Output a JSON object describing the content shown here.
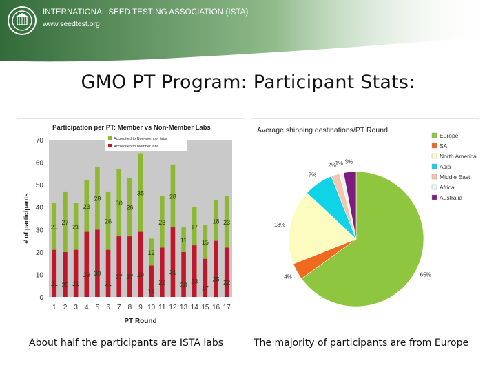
{
  "header": {
    "org_name": "INTERNATIONAL SEED TESTING ASSOCIATION (ISTA)",
    "url": "www.seedtest.org",
    "colors": {
      "band_dark": "#336b3a",
      "band_light": "#8fba8a"
    }
  },
  "slide_title": "GMO PT Program: Participant Stats:",
  "captions": {
    "left": "About half the participants are ISTA labs",
    "right": "The majority of participants are from Europe"
  },
  "chart_data": [
    {
      "type": "bar",
      "stacked": true,
      "title": "Participation per PT: Member vs Non-Member Labs",
      "xlabel": "PT Round",
      "ylabel": "# of participants",
      "ylim": [
        0,
        70
      ],
      "yticks": [
        0,
        10,
        20,
        30,
        40,
        50,
        60,
        70
      ],
      "grid": false,
      "legend": "top-center",
      "categories": [
        "1",
        "2",
        "3",
        "4",
        "5",
        "6",
        "7",
        "8",
        "9",
        "10",
        "11",
        "12",
        "13",
        "14",
        "15",
        "16",
        "17"
      ],
      "series": [
        {
          "name": "Accredited to Non-member labs",
          "color": "#8db832",
          "values": [
            21,
            27,
            21,
            23,
            28,
            26,
            30,
            26,
            35,
            12,
            23,
            28,
            11,
            17,
            15,
            18,
            23
          ]
        },
        {
          "name": "Accredited to Member labs",
          "color": "#c0172c",
          "values": [
            21,
            20,
            21,
            29,
            30,
            21,
            27,
            27,
            29,
            14,
            22,
            31,
            20,
            23,
            17,
            25,
            22
          ]
        }
      ],
      "colors": {
        "plot_bg": "#c9c9c9",
        "axis_text": "#333333"
      }
    },
    {
      "type": "pie",
      "title": "Average shipping destinations/PT Round",
      "legend": "right",
      "slices": [
        {
          "label": "Europe",
          "value": 65,
          "pct_label": "65%",
          "color": "#8ec63f"
        },
        {
          "label": "SA",
          "value": 4,
          "pct_label": "4%",
          "color": "#f06a1d"
        },
        {
          "label": "North America",
          "value": 18,
          "pct_label": "18%",
          "color": "#fdfcc0"
        },
        {
          "label": "Asia",
          "value": 7,
          "pct_label": "7%",
          "color": "#11d3e8"
        },
        {
          "label": "Middle East",
          "value": 2,
          "pct_label": "2%",
          "color": "#f7c4ad"
        },
        {
          "label": "Africa",
          "value": 1,
          "pct_label": "1%",
          "color": "#e6f3f7"
        },
        {
          "label": "Australia",
          "value": 3,
          "pct_label": "3%",
          "color": "#7d1c7e"
        }
      ]
    }
  ]
}
